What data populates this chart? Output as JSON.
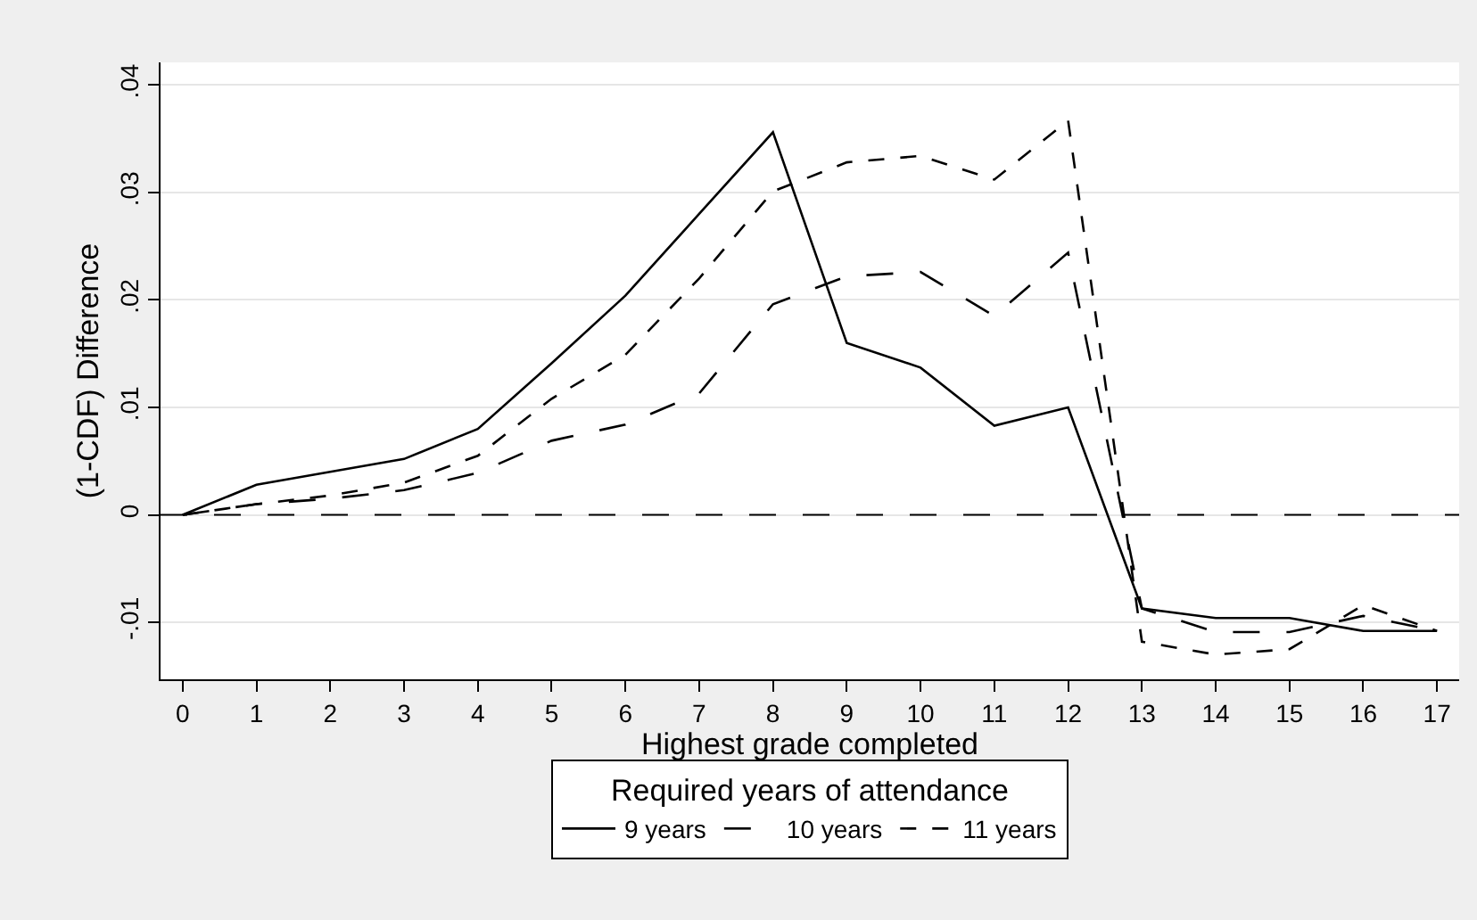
{
  "chart_data": {
    "type": "line",
    "xlabel": "Highest grade completed",
    "ylabel": "(1-CDF) Difference",
    "legend_title": "Required years of attendance",
    "x": [
      0,
      1,
      2,
      3,
      4,
      5,
      6,
      7,
      8,
      9,
      10,
      11,
      12,
      13,
      14,
      15,
      16,
      17
    ],
    "series": [
      {
        "name": "9 years",
        "color": "#000000",
        "line_style": "solid",
        "values": [
          0,
          0.0028,
          0.004,
          0.0052,
          0.008,
          0.0141,
          0.0204,
          0.028,
          0.0356,
          0.016,
          0.0137,
          0.0083,
          0.01,
          -0.0087,
          -0.0096,
          -0.0096,
          -0.0108,
          -0.0108
        ]
      },
      {
        "name": "10 years",
        "color": "#000000",
        "line_style": "dashed",
        "values": [
          0,
          0.001,
          0.0015,
          0.0023,
          0.0039,
          0.0069,
          0.0084,
          0.0113,
          0.0196,
          0.0222,
          0.0226,
          0.0185,
          0.0244,
          -0.0087,
          -0.0109,
          -0.0109,
          -0.0094,
          -0.0108
        ]
      },
      {
        "name": "11 years",
        "color": "#000000",
        "line_style": "dotted",
        "values": [
          0,
          0.001,
          0.0018,
          0.003,
          0.0055,
          0.0108,
          0.0149,
          0.022,
          0.0301,
          0.0328,
          0.0334,
          0.0312,
          0.0367,
          -0.0118,
          -0.013,
          -0.0125,
          -0.0084,
          -0.0108
        ]
      }
    ],
    "xlim": [
      -0.3,
      17.3
    ],
    "xticks": [
      0,
      1,
      2,
      3,
      4,
      5,
      6,
      7,
      8,
      9,
      10,
      11,
      12,
      13,
      14,
      15,
      16,
      17
    ],
    "ylim": [
      -0.0153,
      0.0421
    ],
    "yticks": [
      {
        "value": -0.01,
        "label": "-.01"
      },
      0,
      {
        "value": 0.01,
        "label": ".01"
      },
      {
        "value": 0.02,
        "label": ".02"
      },
      {
        "value": 0.03,
        "label": ".03"
      },
      {
        "value": 0.04,
        "label": ".04"
      }
    ],
    "ref_lines": [
      {
        "axis": "y",
        "value": 0,
        "line_style": "dashed",
        "color": "#000000"
      }
    ],
    "grid": "y",
    "legend": "bottom",
    "marker": "none"
  }
}
